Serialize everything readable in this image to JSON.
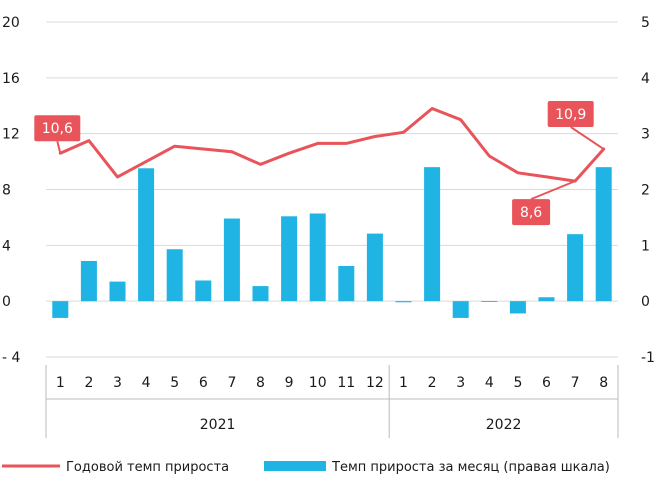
{
  "chart_data": {
    "type": "bar+line",
    "categories": [
      "1",
      "2",
      "3",
      "4",
      "5",
      "6",
      "7",
      "8",
      "9",
      "10",
      "11",
      "12",
      "1",
      "2",
      "3",
      "4",
      "5",
      "6",
      "7",
      "8"
    ],
    "years": [
      {
        "label": "2021",
        "start_index": 0,
        "end_index": 11
      },
      {
        "label": "2022",
        "start_index": 12,
        "end_index": 19
      }
    ],
    "y_left": {
      "ticks": [
        "20",
        "16",
        "12",
        "8",
        "4",
        "0",
        "- 4"
      ],
      "lim": [
        -4,
        20
      ]
    },
    "y_right": {
      "ticks": [
        "5",
        "4",
        "3",
        "2",
        "1",
        "0",
        "-1"
      ],
      "lim": [
        -1,
        5
      ]
    },
    "series": [
      {
        "name": "Годовой темп прироста",
        "type": "line",
        "axis": "left",
        "color": "#e8545a",
        "values": [
          10.6,
          11.5,
          8.9,
          10.0,
          11.1,
          10.9,
          10.7,
          9.8,
          10.6,
          11.3,
          11.3,
          11.8,
          12.1,
          13.8,
          13.0,
          10.4,
          9.2,
          8.9,
          8.6,
          10.9
        ]
      },
      {
        "name": "Темп прироста за месяц (правая шкала)",
        "type": "bar",
        "axis": "right",
        "color": "#1fb4e3",
        "values": [
          -0.3,
          0.72,
          0.35,
          2.38,
          0.93,
          0.37,
          1.48,
          0.27,
          1.52,
          1.57,
          0.63,
          1.21,
          -0.02,
          2.4,
          -0.3,
          0.0,
          -0.22,
          0.07,
          1.2,
          2.4
        ]
      }
    ],
    "annotations": [
      {
        "text": "10,6",
        "index": 0,
        "value": 10.6
      },
      {
        "text": "8,6",
        "index": 18,
        "value": 8.6
      },
      {
        "text": "10,9",
        "index": 19,
        "value": 10.9
      }
    ],
    "grid": true,
    "legend": "bottom"
  }
}
